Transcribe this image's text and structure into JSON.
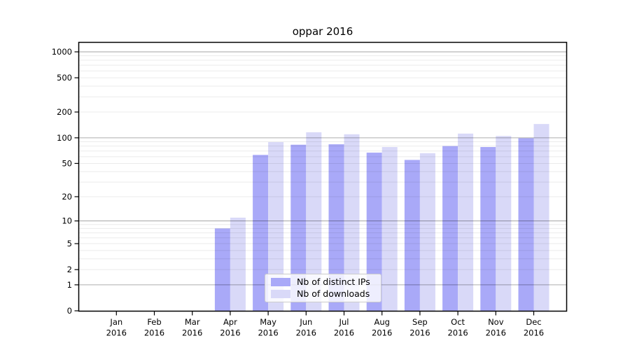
{
  "chart_data": {
    "type": "bar",
    "title": "oppar 2016",
    "categories": [
      "Jan 2016",
      "Feb 2016",
      "Mar 2016",
      "Apr 2016",
      "May 2016",
      "Jun 2016",
      "Jul 2016",
      "Aug 2016",
      "Sep 2016",
      "Oct 2016",
      "Nov 2016",
      "Dec 2016"
    ],
    "series": [
      {
        "name": "Nb of distinct IPs",
        "color": "#a9a9f8",
        "values": [
          0,
          0,
          0,
          8,
          63,
          83,
          84,
          67,
          55,
          80,
          78,
          99
        ]
      },
      {
        "name": "Nb of downloads",
        "color": "#d9d9f8",
        "values": [
          0,
          0,
          0,
          11,
          89,
          116,
          110,
          78,
          66,
          112,
          105,
          145
        ]
      }
    ],
    "yscale": "log1p",
    "y_ticks": [
      0,
      1,
      2,
      5,
      10,
      20,
      50,
      100,
      200,
      500,
      1000
    ],
    "ylim": [
      0,
      1275
    ],
    "grid": "horizontal major+minor, drawn over bars",
    "legend_position": "inside lower-center"
  },
  "colors": {
    "background": "#ffffff",
    "bar_distinct_ips": "#a9a9f8",
    "bar_downloads": "#d9d9f8",
    "axis": "#000000",
    "grid_major": "rgba(0,0,0,0.32)",
    "grid_minor": "rgba(0,0,0,0.08)",
    "legend_border": "#cccccc",
    "text": "#000000"
  }
}
